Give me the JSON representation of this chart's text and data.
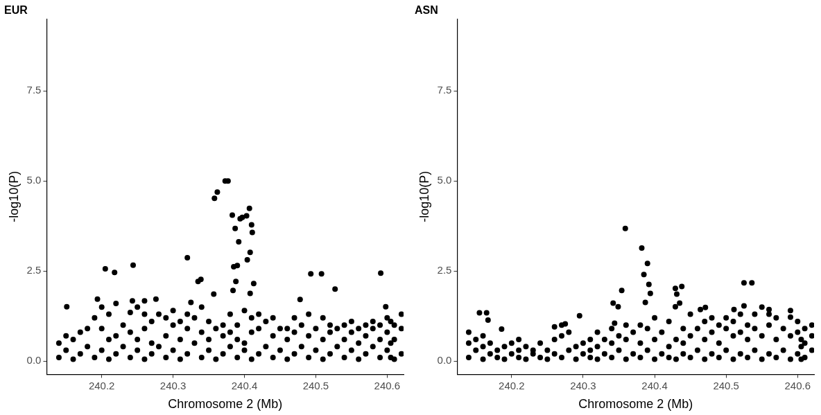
{
  "chart_data": [
    {
      "type": "scatter",
      "title": "EUR",
      "xlabel": "Chromosome 2 (Mb)",
      "ylabel": "-log10(P)",
      "color": "#000000",
      "marker": "circle",
      "xlim": [
        240.123,
        240.623
      ],
      "ylim": [
        -0.37,
        9.5
      ],
      "xticks": [
        240.2,
        240.3,
        240.4,
        240.5,
        240.6
      ],
      "yticks": [
        {
          "value": 0,
          "label": "0.0"
        },
        {
          "value": 2.5,
          "label": "2.5"
        },
        {
          "value": 5,
          "label": "5.0"
        },
        {
          "value": 7.5,
          "label": "7.5"
        }
      ],
      "x": [
        240.151,
        240.205,
        240.218,
        240.244,
        240.32,
        240.358,
        240.362,
        240.373,
        240.377,
        240.383,
        240.387,
        240.392,
        240.385,
        240.388,
        240.394,
        240.397,
        240.403,
        240.407,
        240.41,
        240.411,
        240.408,
        240.404,
        240.413,
        240.408,
        240.39,
        240.384,
        240.357,
        240.335,
        240.339,
        240.325,
        240.493,
        240.508,
        240.527,
        240.591,
        240.478,
        240.598,
        240.194,
        240.243,
        240.26,
        240.276,
        240.14,
        240.14,
        240.15,
        240.15,
        240.16,
        240.16,
        240.17,
        240.17,
        240.18,
        240.18,
        240.19,
        240.19,
        240.2,
        240.2,
        240.2,
        240.21,
        240.21,
        240.21,
        240.22,
        240.22,
        240.22,
        240.23,
        240.23,
        240.24,
        240.24,
        240.24,
        240.25,
        240.25,
        240.25,
        240.26,
        240.26,
        240.26,
        240.27,
        240.27,
        240.27,
        240.28,
        240.28,
        240.29,
        240.29,
        240.29,
        240.3,
        240.3,
        240.3,
        240.31,
        240.31,
        240.31,
        240.32,
        240.32,
        240.32,
        240.33,
        240.33,
        240.34,
        240.34,
        240.34,
        240.35,
        240.35,
        240.35,
        240.36,
        240.36,
        240.37,
        240.37,
        240.37,
        240.38,
        240.38,
        240.38,
        240.39,
        240.39,
        240.39,
        240.4,
        240.4,
        240.4,
        240.41,
        240.41,
        240.41,
        240.42,
        240.42,
        240.42,
        240.43,
        240.43,
        240.44,
        240.44,
        240.44,
        240.45,
        240.45,
        240.46,
        240.46,
        240.46,
        240.47,
        240.47,
        240.47,
        240.48,
        240.48,
        240.49,
        240.49,
        240.49,
        240.5,
        240.5,
        240.51,
        240.51,
        240.51,
        240.52,
        240.52,
        240.52,
        240.53,
        240.53,
        240.54,
        240.54,
        240.54,
        240.55,
        240.55,
        240.55,
        240.56,
        240.56,
        240.56,
        240.57,
        240.57,
        240.57,
        240.58,
        240.58,
        240.58,
        240.59,
        240.59,
        240.59,
        240.6,
        240.6,
        240.6,
        240.61,
        240.61,
        240.61,
        240.62,
        240.62,
        240.62,
        240.605,
        240.605,
        240.605
      ],
      "values": [
        1.51,
        2.56,
        2.46,
        2.66,
        2.87,
        4.52,
        4.69,
        5.0,
        5.0,
        4.05,
        3.68,
        3.31,
        2.62,
        2.21,
        3.95,
        3.99,
        4.03,
        4.24,
        3.78,
        3.57,
        3.02,
        2.81,
        2.15,
        1.88,
        2.65,
        1.96,
        1.86,
        2.21,
        2.27,
        1.63,
        2.42,
        2.42,
        2.0,
        2.44,
        1.71,
        1.51,
        1.72,
        1.67,
        1.67,
        1.72,
        0.1,
        0.5,
        0.3,
        0.7,
        0.05,
        0.6,
        0.2,
        0.8,
        0.4,
        0.9,
        0.1,
        1.2,
        0.3,
        0.9,
        1.5,
        0.05,
        0.6,
        1.3,
        0.2,
        0.7,
        1.6,
        0.4,
        1.0,
        0.1,
        0.8,
        1.35,
        0.3,
        0.6,
        1.5,
        0.05,
        0.9,
        1.3,
        0.2,
        0.5,
        1.1,
        0.4,
        1.3,
        0.1,
        0.7,
        1.2,
        0.3,
        1.0,
        1.4,
        0.05,
        0.6,
        1.1,
        0.2,
        0.9,
        1.3,
        0.5,
        1.2,
        0.1,
        0.8,
        1.5,
        0.3,
        0.6,
        1.1,
        0.05,
        0.9,
        0.2,
        0.7,
        1.0,
        0.4,
        0.8,
        1.3,
        0.1,
        0.6,
        1.0,
        0.3,
        0.5,
        1.4,
        0.05,
        0.8,
        1.2,
        0.2,
        0.9,
        1.3,
        0.4,
        1.1,
        0.1,
        0.7,
        1.2,
        0.3,
        0.9,
        0.05,
        0.6,
        0.9,
        0.2,
        0.8,
        1.2,
        0.4,
        1.0,
        0.1,
        0.7,
        1.3,
        0.3,
        0.9,
        0.05,
        0.6,
        1.2,
        0.2,
        0.8,
        1.0,
        0.4,
        0.9,
        0.1,
        0.6,
        1.0,
        0.3,
        0.8,
        1.1,
        0.05,
        0.5,
        0.9,
        0.2,
        0.7,
        1.0,
        0.4,
        0.9,
        1.1,
        0.1,
        0.6,
        1.0,
        0.3,
        0.8,
        1.2,
        0.05,
        0.6,
        1.0,
        0.2,
        0.9,
        1.3,
        0.1,
        0.5,
        1.1
      ]
    },
    {
      "type": "scatter",
      "title": "ASN",
      "xlabel": "Chromosome 2 (Mb)",
      "ylabel": "-log10(P)",
      "color": "#000000",
      "marker": "circle",
      "xlim": [
        240.124,
        240.623
      ],
      "ylim": [
        -0.37,
        9.5
      ],
      "xticks": [
        240.2,
        240.3,
        240.4,
        240.5,
        240.6
      ],
      "yticks": [
        {
          "value": 0,
          "label": "0.0"
        },
        {
          "value": 2.5,
          "label": "2.5"
        },
        {
          "value": 5,
          "label": "5.0"
        },
        {
          "value": 7.5,
          "label": "7.5"
        }
      ],
      "x": [
        240.359,
        240.382,
        240.39,
        240.385,
        240.392,
        240.394,
        240.387,
        240.354,
        240.342,
        240.349,
        240.344,
        240.429,
        240.438,
        240.431,
        240.435,
        240.429,
        240.525,
        240.536,
        240.525,
        240.155,
        240.165,
        240.167,
        240.295,
        240.471,
        240.464,
        240.511,
        240.56,
        240.59,
        240.26,
        240.186,
        240.275,
        240.14,
        240.14,
        240.14,
        240.15,
        240.15,
        240.16,
        240.16,
        240.16,
        240.17,
        240.17,
        240.18,
        240.18,
        240.19,
        240.19,
        240.2,
        240.2,
        240.21,
        240.21,
        240.21,
        240.22,
        240.22,
        240.23,
        240.23,
        240.24,
        240.24,
        240.25,
        240.25,
        240.26,
        240.26,
        240.27,
        240.27,
        240.27,
        240.28,
        240.28,
        240.29,
        240.29,
        240.3,
        240.3,
        240.31,
        240.31,
        240.31,
        240.32,
        240.32,
        240.32,
        240.33,
        240.33,
        240.34,
        240.34,
        240.34,
        240.35,
        240.35,
        240.36,
        240.36,
        240.36,
        240.37,
        240.37,
        240.38,
        240.38,
        240.38,
        240.39,
        240.39,
        240.4,
        240.4,
        240.4,
        240.41,
        240.41,
        240.42,
        240.42,
        240.42,
        240.43,
        240.43,
        240.44,
        240.44,
        240.44,
        240.45,
        240.45,
        240.45,
        240.46,
        240.46,
        240.47,
        240.47,
        240.47,
        240.48,
        240.48,
        240.48,
        240.49,
        240.49,
        240.49,
        240.5,
        240.5,
        240.5,
        240.51,
        240.51,
        240.51,
        240.52,
        240.52,
        240.52,
        240.53,
        240.53,
        240.53,
        240.54,
        240.54,
        240.54,
        240.55,
        240.55,
        240.55,
        240.56,
        240.56,
        240.56,
        240.57,
        240.57,
        240.57,
        240.58,
        240.58,
        240.59,
        240.59,
        240.59,
        240.6,
        240.6,
        240.6,
        240.61,
        240.61,
        240.61,
        240.62,
        240.62,
        240.62,
        240.605,
        240.605,
        240.605
      ],
      "values": [
        3.68,
        3.14,
        2.71,
        2.4,
        2.13,
        1.88,
        1.63,
        1.96,
        1.61,
        1.51,
        1.05,
        2.02,
        2.07,
        1.86,
        1.61,
        1.51,
        2.17,
        2.17,
        1.53,
        1.34,
        1.34,
        1.14,
        1.26,
        1.49,
        1.43,
        1.43,
        1.43,
        1.22,
        0.95,
        0.89,
        1.03,
        0.1,
        0.5,
        0.8,
        0.3,
        0.6,
        0.05,
        0.4,
        0.7,
        0.2,
        0.5,
        0.1,
        0.3,
        0.05,
        0.4,
        0.2,
        0.5,
        0.1,
        0.3,
        0.6,
        0.05,
        0.4,
        0.2,
        0.3,
        0.1,
        0.5,
        0.05,
        0.3,
        0.2,
        0.6,
        0.1,
        0.7,
        1.0,
        0.3,
        0.8,
        0.05,
        0.4,
        0.2,
        0.5,
        0.1,
        0.3,
        0.6,
        0.05,
        0.4,
        0.8,
        0.2,
        0.6,
        0.1,
        0.5,
        0.9,
        0.3,
        0.7,
        0.05,
        0.6,
        1.0,
        0.2,
        0.8,
        0.1,
        0.5,
        1.0,
        0.3,
        0.9,
        0.05,
        0.6,
        1.2,
        0.2,
        0.8,
        0.1,
        0.4,
        1.1,
        0.05,
        0.6,
        0.2,
        0.5,
        0.9,
        0.1,
        0.7,
        1.3,
        0.3,
        0.9,
        0.05,
        0.6,
        1.1,
        0.2,
        0.8,
        1.2,
        0.1,
        0.5,
        1.0,
        0.3,
        0.9,
        1.2,
        0.05,
        0.7,
        1.1,
        0.2,
        0.8,
        1.3,
        0.1,
        0.6,
        1.0,
        0.3,
        0.9,
        1.3,
        0.05,
        0.7,
        1.5,
        0.2,
        1.0,
        1.3,
        0.1,
        0.6,
        1.2,
        0.3,
        0.9,
        0.05,
        0.7,
        1.4,
        0.2,
        0.8,
        1.1,
        0.1,
        0.5,
        0.9,
        0.3,
        0.7,
        1.0,
        0.05,
        0.4,
        0.6
      ]
    }
  ]
}
